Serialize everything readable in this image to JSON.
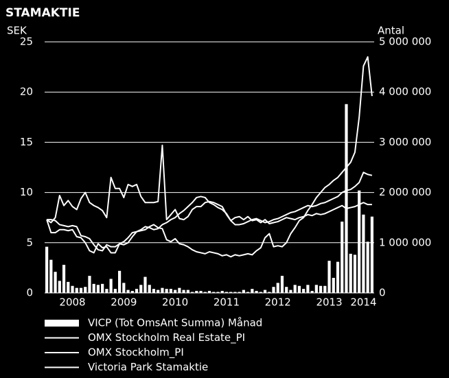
{
  "chart_data": {
    "type": "combo",
    "title": "STAMAKTIE",
    "y_label": "SEK",
    "y2_label": "Antal",
    "categories": [
      null,
      null,
      null,
      null,
      null,
      null,
      "2008",
      null,
      null,
      null,
      null,
      null,
      null,
      null,
      null,
      null,
      null,
      null,
      "2009",
      null,
      null,
      null,
      null,
      null,
      null,
      null,
      null,
      null,
      null,
      null,
      "2010",
      null,
      null,
      null,
      null,
      null,
      null,
      null,
      null,
      null,
      null,
      null,
      "2011",
      null,
      null,
      null,
      null,
      null,
      null,
      null,
      null,
      null,
      null,
      null,
      "2012",
      null,
      null,
      null,
      null,
      null,
      null,
      null,
      null,
      null,
      null,
      null,
      "2013",
      null,
      null,
      null,
      null,
      null,
      null,
      null,
      "2014",
      null,
      null
    ],
    "ylim": [
      0,
      25
    ],
    "yticks": [
      0,
      5,
      10,
      15,
      20,
      25
    ],
    "y2lim": [
      0,
      5000000
    ],
    "y2ticks": [
      0,
      {
        "value": 1000000,
        "label": "1 000 000"
      },
      {
        "value": 2000000,
        "label": "2 000 000"
      },
      {
        "value": 3000000,
        "label": "3 000 000"
      },
      {
        "value": 4000000,
        "label": "4 000 000"
      },
      {
        "value": 5000000,
        "label": "5 000 000"
      }
    ],
    "grid": true,
    "series": [
      {
        "name": "VICP (Tot OmsAnt Summa) Månad",
        "type": "bar",
        "axis": "y2",
        "color": "#ffffff",
        "values": [
          920000,
          660000,
          420000,
          240000,
          560000,
          220000,
          140000,
          100000,
          100000,
          120000,
          340000,
          180000,
          160000,
          180000,
          80000,
          280000,
          80000,
          440000,
          200000,
          60000,
          40000,
          80000,
          160000,
          320000,
          160000,
          80000,
          60000,
          100000,
          80000,
          80000,
          60000,
          100000,
          60000,
          60000,
          20000,
          40000,
          40000,
          20000,
          40000,
          20000,
          20000,
          40000,
          20000,
          20000,
          20000,
          20000,
          60000,
          20000,
          80000,
          40000,
          20000,
          60000,
          20000,
          120000,
          200000,
          340000,
          120000,
          60000,
          160000,
          140000,
          80000,
          160000,
          40000,
          160000,
          140000,
          140000,
          640000,
          300000,
          620000,
          1420000,
          3760000,
          780000,
          760000,
          2040000,
          1560000,
          1020000,
          1520000
        ]
      },
      {
        "name": "OMX Stockholm Real Estate_PI",
        "type": "line",
        "color": "#ffffff",
        "values": [
          7.3,
          7.3,
          7.2,
          6.8,
          6.7,
          6.6,
          6.7,
          6.6,
          5.7,
          5.6,
          5.4,
          4.8,
          4.3,
          4.2,
          4.8,
          4.6,
          4.6,
          4.9,
          5.1,
          5.5,
          6.0,
          6.1,
          6.3,
          6.6,
          6.5,
          6.3,
          6.4,
          6.8,
          7.0,
          7.3,
          7.5,
          7.9,
          8.2,
          8.6,
          9.0,
          9.5,
          9.6,
          9.5,
          9.0,
          8.8,
          8.5,
          8.3,
          7.9,
          7.2,
          6.8,
          6.8,
          6.9,
          7.1,
          7.3,
          7.4,
          7.2,
          7.0,
          7.1,
          7.3,
          7.4,
          7.6,
          7.8,
          8.0,
          8.1,
          8.3,
          8.5,
          8.7,
          8.6,
          8.7,
          8.9,
          9.0,
          9.2,
          9.4,
          9.6,
          10.0,
          10.2,
          10.3,
          10.6,
          11.0,
          12.0,
          11.8,
          11.7
        ]
      },
      {
        "name": "OMX Stockholm_PI",
        "type": "line",
        "color": "#ffffff",
        "values": [
          7.3,
          7.0,
          7.5,
          9.7,
          8.7,
          9.2,
          8.6,
          8.3,
          9.4,
          10.0,
          9.0,
          8.7,
          8.5,
          8.2,
          7.5,
          11.5,
          10.4,
          10.4,
          9.5,
          10.8,
          10.6,
          10.8,
          9.6,
          9.0,
          9.0,
          9.0,
          9.1,
          14.7,
          7.3,
          7.8,
          8.3,
          7.4,
          7.3,
          7.6,
          8.3,
          8.6,
          8.6,
          9.0,
          9.1,
          9.0,
          8.8,
          8.6,
          7.8,
          7.2,
          7.5,
          7.6,
          7.3,
          7.6,
          7.2,
          7.3,
          7.0,
          7.3,
          6.9,
          7.0,
          7.1,
          7.3,
          7.5,
          7.4,
          7.3,
          7.5,
          7.6,
          7.8,
          7.7,
          7.9,
          7.8,
          7.9,
          8.1,
          8.3,
          8.5,
          8.7,
          8.4,
          8.5,
          8.6,
          8.8,
          9.0,
          8.8,
          8.8
        ]
      },
      {
        "name": "Victoria Park Stamaktie",
        "type": "line",
        "color": "#ffffff",
        "values": [
          7.3,
          6.0,
          6.0,
          6.3,
          6.3,
          6.2,
          6.3,
          5.6,
          5.5,
          5.0,
          4.2,
          4.0,
          4.9,
          4.5,
          4.6,
          4.0,
          4.0,
          4.9,
          4.8,
          5.0,
          5.6,
          6.1,
          6.2,
          6.3,
          6.6,
          6.8,
          6.5,
          6.4,
          5.3,
          5.1,
          5.4,
          4.9,
          4.8,
          4.6,
          4.3,
          4.1,
          4.0,
          3.9,
          4.1,
          4.0,
          3.9,
          3.7,
          3.8,
          3.6,
          3.8,
          3.7,
          3.8,
          3.9,
          3.8,
          4.2,
          4.5,
          5.5,
          5.9,
          4.6,
          4.7,
          4.6,
          5.0,
          5.9,
          6.5,
          7.2,
          7.5,
          8.2,
          8.8,
          9.5,
          10.0,
          10.5,
          10.8,
          11.2,
          11.5,
          12.0,
          12.5,
          13.0,
          14.0,
          17.5,
          22.6,
          23.5,
          19.6
        ]
      }
    ]
  }
}
